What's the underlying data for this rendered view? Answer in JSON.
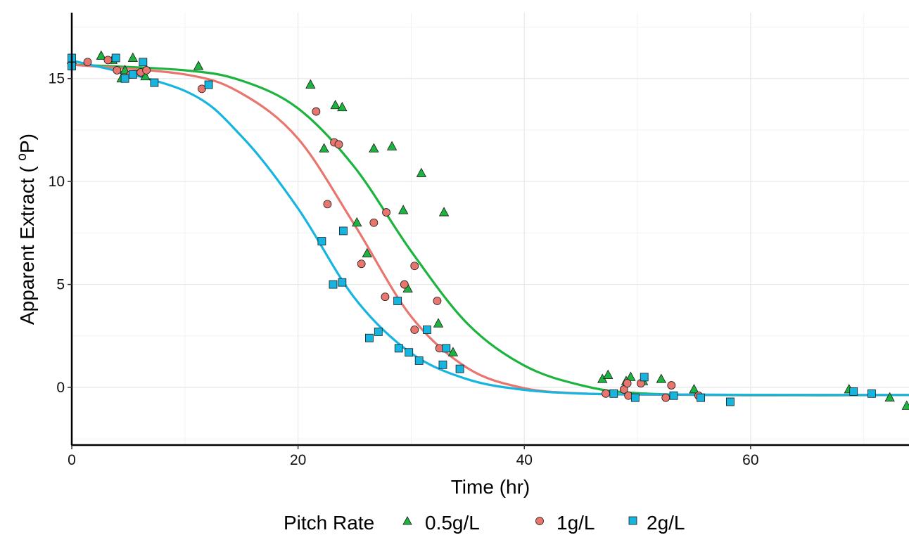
{
  "chart_data": {
    "type": "scatter",
    "title": "",
    "xlabel": "Time (hr)",
    "ylabel": "Apparent Extract ( °P)",
    "ylabel_main": "Apparent Extract ( ",
    "ylabel_sup": "o",
    "ylabel_end": "P)",
    "xlim": [
      0,
      74
    ],
    "ylim": [
      -2.8,
      18.2
    ],
    "xticks": [
      0,
      20,
      40,
      60
    ],
    "yticks": [
      0,
      5,
      10,
      15
    ],
    "xtick_labels": [
      "0",
      "20",
      "40",
      "60"
    ],
    "ytick_labels": [
      "0",
      "5",
      "10",
      "15"
    ],
    "grid": true,
    "legend": {
      "title": "Pitch Rate",
      "position": "bottom",
      "entries": [
        "0.5g/L",
        "1g/L",
        "2g/L"
      ]
    },
    "series": [
      {
        "name": "0.5g/L",
        "marker": "triangle",
        "color": "#1DB33F",
        "points": [
          [
            0,
            15.9
          ],
          [
            2.6,
            16.1
          ],
          [
            3.6,
            15.9
          ],
          [
            4.4,
            15.0
          ],
          [
            4.7,
            15.4
          ],
          [
            5.4,
            16.0
          ],
          [
            6.5,
            15.1
          ],
          [
            11.2,
            15.6
          ],
          [
            21.1,
            14.7
          ],
          [
            22.3,
            11.6
          ],
          [
            23.3,
            13.7
          ],
          [
            23.9,
            13.6
          ],
          [
            25.2,
            8.0
          ],
          [
            26.1,
            6.5
          ],
          [
            26.7,
            11.6
          ],
          [
            28.3,
            11.7
          ],
          [
            29.3,
            8.6
          ],
          [
            29.7,
            4.8
          ],
          [
            30.9,
            10.4
          ],
          [
            32.4,
            3.1
          ],
          [
            32.9,
            8.5
          ],
          [
            33.7,
            1.7
          ],
          [
            46.9,
            0.4
          ],
          [
            47.4,
            0.6
          ],
          [
            49.0,
            0.3
          ],
          [
            49.4,
            0.5
          ],
          [
            50.5,
            0.3
          ],
          [
            52.1,
            0.4
          ],
          [
            55.0,
            -0.1
          ],
          [
            68.7,
            -0.1
          ],
          [
            72.3,
            -0.5
          ],
          [
            73.8,
            -0.9
          ]
        ],
        "fit": [
          [
            0,
            15.68
          ],
          [
            10,
            15.4
          ],
          [
            15,
            14.9
          ],
          [
            20,
            13.55
          ],
          [
            25,
            10.69
          ],
          [
            30,
            6.61
          ],
          [
            35,
            3.08
          ],
          [
            40,
            1.06
          ],
          [
            45,
            0.11
          ],
          [
            50,
            -0.28
          ],
          [
            60,
            -0.38
          ],
          [
            74,
            -0.37
          ]
        ]
      },
      {
        "name": "1g/L",
        "marker": "circle",
        "color": "#E8766E",
        "points": [
          [
            1.4,
            15.8
          ],
          [
            3.2,
            15.9
          ],
          [
            4.0,
            15.4
          ],
          [
            5.2,
            15.2
          ],
          [
            6.1,
            15.3
          ],
          [
            6.6,
            15.4
          ],
          [
            11.5,
            14.5
          ],
          [
            21.6,
            13.4
          ],
          [
            23.2,
            11.9
          ],
          [
            23.6,
            11.8
          ],
          [
            22.6,
            8.9
          ],
          [
            25.6,
            6.0
          ],
          [
            26.7,
            8.0
          ],
          [
            27.7,
            4.4
          ],
          [
            27.8,
            8.5
          ],
          [
            29.4,
            5.0
          ],
          [
            30.3,
            2.8
          ],
          [
            30.3,
            5.9
          ],
          [
            32.3,
            4.2
          ],
          [
            32.5,
            1.9
          ],
          [
            47.2,
            -0.3
          ],
          [
            48.8,
            -0.1
          ],
          [
            49.1,
            0.2
          ],
          [
            49.2,
            -0.4
          ],
          [
            50.3,
            0.2
          ],
          [
            52.5,
            -0.5
          ],
          [
            53.0,
            0.1
          ],
          [
            55.4,
            -0.4
          ]
        ],
        "fit": [
          [
            0,
            15.67
          ],
          [
            10,
            15.2
          ],
          [
            15,
            14.28
          ],
          [
            20,
            12.08
          ],
          [
            25,
            7.89
          ],
          [
            30,
            3.44
          ],
          [
            35,
            0.93
          ],
          [
            40,
            -0.04
          ],
          [
            45,
            -0.29
          ],
          [
            50,
            -0.35
          ],
          [
            60,
            -0.37
          ],
          [
            74,
            -0.37
          ]
        ]
      },
      {
        "name": "2g/L",
        "marker": "square",
        "color": "#16B5E0",
        "points": [
          [
            0,
            16.0
          ],
          [
            0,
            15.6
          ],
          [
            3.9,
            16.0
          ],
          [
            4.7,
            15.0
          ],
          [
            5.4,
            15.2
          ],
          [
            6.3,
            15.8
          ],
          [
            7.3,
            14.8
          ],
          [
            12.1,
            14.7
          ],
          [
            22.1,
            7.1
          ],
          [
            23.1,
            5.0
          ],
          [
            23.9,
            5.1
          ],
          [
            24.0,
            7.6
          ],
          [
            26.3,
            2.4
          ],
          [
            27.1,
            2.7
          ],
          [
            28.8,
            4.2
          ],
          [
            28.9,
            1.9
          ],
          [
            29.8,
            1.7
          ],
          [
            30.7,
            1.3
          ],
          [
            31.4,
            2.8
          ],
          [
            32.8,
            1.1
          ],
          [
            33.1,
            1.9
          ],
          [
            34.3,
            0.9
          ],
          [
            47.9,
            -0.3
          ],
          [
            49.8,
            -0.5
          ],
          [
            50.6,
            0.5
          ],
          [
            53.2,
            -0.4
          ],
          [
            55.6,
            -0.5
          ],
          [
            58.2,
            -0.7
          ],
          [
            69.1,
            -0.2
          ],
          [
            70.7,
            -0.3
          ]
        ],
        "fit": [
          [
            0,
            15.88
          ],
          [
            10,
            14.4
          ],
          [
            15,
            12.2
          ],
          [
            20,
            8.69
          ],
          [
            25,
            4.34
          ],
          [
            30,
            1.66
          ],
          [
            35,
            0.39
          ],
          [
            40,
            -0.12
          ],
          [
            45,
            -0.3
          ],
          [
            50,
            -0.34
          ],
          [
            60,
            -0.36
          ],
          [
            74,
            -0.37
          ]
        ]
      }
    ]
  }
}
